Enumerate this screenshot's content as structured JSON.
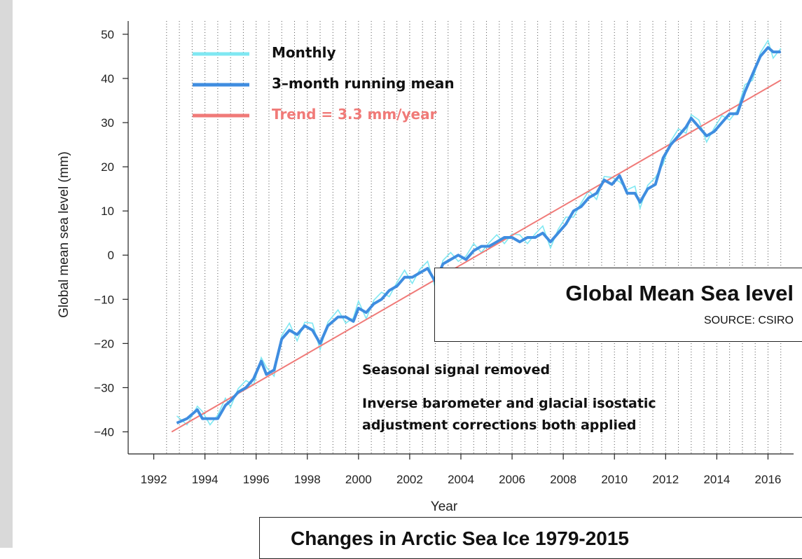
{
  "chart_data": {
    "type": "line",
    "title": "Global Mean Sea level",
    "source": "SOURCE: CSIRO",
    "xlabel": "Year",
    "ylabel": "Global mean sea level (mm)",
    "xlim": [
      1991,
      2017
    ],
    "ylim": [
      -45,
      53
    ],
    "x_ticks": [
      1992,
      1994,
      1996,
      1998,
      2000,
      2002,
      2004,
      2006,
      2008,
      2010,
      2012,
      2014,
      2016
    ],
    "y_ticks": [
      -40,
      -30,
      -20,
      -10,
      0,
      10,
      20,
      30,
      40,
      50
    ],
    "grid": "vertical dotted lines every 6 months",
    "legend": {
      "placement": "top-left",
      "entries": [
        {
          "label": "Monthly",
          "color": "#7fe8f2"
        },
        {
          "label": "3–month running mean",
          "color": "#3f8de0"
        },
        {
          "label": "Trend = 3.3 mm/year",
          "color": "#f07a78"
        }
      ]
    },
    "notes": [
      "Seasonal signal removed",
      "Inverse barometer and glacial isostatic",
      "adjustment corrections both applied"
    ],
    "series": [
      {
        "name": "3–month running mean",
        "color": "#3f8de0",
        "points": [
          [
            1992.9,
            -38
          ],
          [
            1993.3,
            -37
          ],
          [
            1993.7,
            -35
          ],
          [
            1993.9,
            -37
          ],
          [
            1994.2,
            -37
          ],
          [
            1994.5,
            -37
          ],
          [
            1994.8,
            -34
          ],
          [
            1995.0,
            -33
          ],
          [
            1995.3,
            -31
          ],
          [
            1995.6,
            -30
          ],
          [
            1995.9,
            -28
          ],
          [
            1996.2,
            -24
          ],
          [
            1996.4,
            -27
          ],
          [
            1996.7,
            -26
          ],
          [
            1997.0,
            -19
          ],
          [
            1997.3,
            -17
          ],
          [
            1997.6,
            -18
          ],
          [
            1997.9,
            -16
          ],
          [
            1998.2,
            -17
          ],
          [
            1998.5,
            -20
          ],
          [
            1998.8,
            -16
          ],
          [
            1999.2,
            -14
          ],
          [
            1999.5,
            -14
          ],
          [
            1999.8,
            -15
          ],
          [
            2000.0,
            -12
          ],
          [
            2000.3,
            -13
          ],
          [
            2000.6,
            -11
          ],
          [
            2000.9,
            -10
          ],
          [
            2001.2,
            -8
          ],
          [
            2001.5,
            -7
          ],
          [
            2001.8,
            -5
          ],
          [
            2002.1,
            -5
          ],
          [
            2002.4,
            -4
          ],
          [
            2002.7,
            -3
          ],
          [
            2003.0,
            -6
          ],
          [
            2003.3,
            -2
          ],
          [
            2003.6,
            -1
          ],
          [
            2003.9,
            0
          ],
          [
            2004.2,
            -1
          ],
          [
            2004.5,
            1
          ],
          [
            2004.8,
            2
          ],
          [
            2005.1,
            2
          ],
          [
            2005.4,
            3
          ],
          [
            2005.7,
            4
          ],
          [
            2006.0,
            4
          ],
          [
            2006.3,
            3
          ],
          [
            2006.6,
            4
          ],
          [
            2006.9,
            4
          ],
          [
            2007.2,
            5
          ],
          [
            2007.5,
            3
          ],
          [
            2007.8,
            5
          ],
          [
            2008.1,
            7
          ],
          [
            2008.4,
            10
          ],
          [
            2008.7,
            11
          ],
          [
            2009.0,
            13
          ],
          [
            2009.3,
            14
          ],
          [
            2009.6,
            17
          ],
          [
            2009.9,
            16
          ],
          [
            2010.2,
            18
          ],
          [
            2010.5,
            14
          ],
          [
            2010.8,
            14
          ],
          [
            2011.0,
            12
          ],
          [
            2011.3,
            15
          ],
          [
            2011.6,
            16
          ],
          [
            2011.9,
            22
          ],
          [
            2012.2,
            25
          ],
          [
            2012.5,
            27
          ],
          [
            2012.8,
            29
          ],
          [
            2013.0,
            31
          ],
          [
            2013.3,
            29
          ],
          [
            2013.6,
            27
          ],
          [
            2013.9,
            28
          ],
          [
            2014.2,
            30
          ],
          [
            2014.5,
            32
          ],
          [
            2014.8,
            32
          ],
          [
            2015.1,
            37
          ],
          [
            2015.4,
            41
          ],
          [
            2015.7,
            45
          ],
          [
            2016.0,
            47
          ],
          [
            2016.2,
            46
          ],
          [
            2016.5,
            46
          ]
        ]
      },
      {
        "name": "Trend = 3.3 mm/year",
        "color": "#f07a78",
        "points": [
          [
            1992.7,
            -40
          ],
          [
            2016.5,
            39.6
          ]
        ]
      }
    ]
  }
}
